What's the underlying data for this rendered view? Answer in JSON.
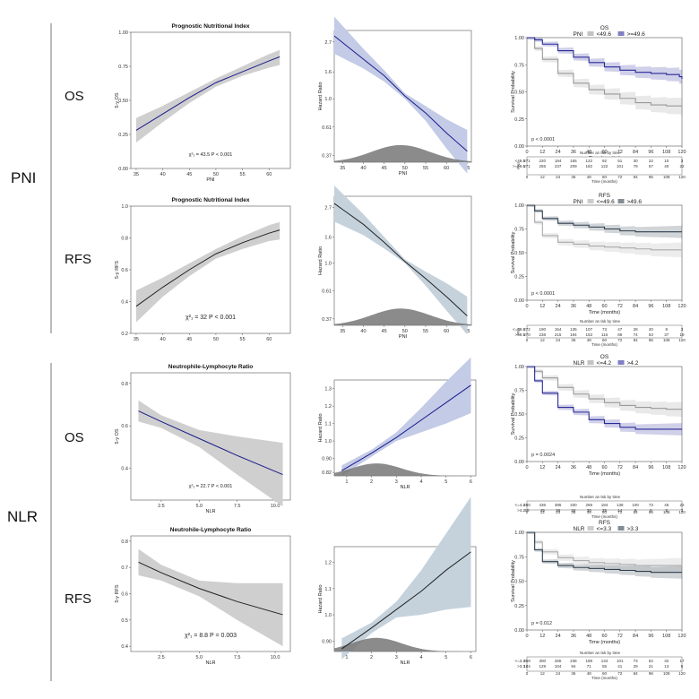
{
  "row_groups": [
    {
      "label": "PNI"
    },
    {
      "label": "NLR"
    }
  ],
  "row_labels": [
    "OS",
    "RFS",
    "OS",
    "RFS"
  ],
  "chart_data": [
    {
      "type": "line",
      "title": "Prognostic Nutritional Index",
      "xlabel": "PNI",
      "ylabel": "5-y OS",
      "xticks": [
        35,
        40,
        45,
        50,
        55,
        60
      ],
      "yticks": [
        "0.00",
        "0.25",
        "0.50",
        "0.75",
        "1.00"
      ],
      "xlim": [
        34,
        64
      ],
      "ylim": [
        0,
        1
      ],
      "x": [
        35,
        40,
        45,
        50,
        55,
        60,
        62
      ],
      "y": [
        0.28,
        0.4,
        0.52,
        0.63,
        0.71,
        0.79,
        0.82
      ],
      "ci_lower": [
        0.19,
        0.34,
        0.48,
        0.6,
        0.68,
        0.74,
        0.76
      ],
      "ci_upper": [
        0.37,
        0.46,
        0.56,
        0.66,
        0.75,
        0.84,
        0.87
      ],
      "line_color": "#1a1a8c",
      "annotation": "χ²₁ = 43.5  P < 0.001"
    },
    {
      "type": "line",
      "title": "",
      "xlabel": "PNI",
      "ylabel": "Hazard Ratio",
      "xticks": [
        35,
        40,
        45,
        50,
        55,
        60,
        65
      ],
      "yticks": [
        "0.37",
        "0.61",
        "1.0",
        "1.6",
        "2.7"
      ],
      "yscale": "log",
      "xlim": [
        33,
        66
      ],
      "ylim": [
        0.33,
        3.3
      ],
      "x": [
        33,
        40,
        45,
        50,
        55,
        60,
        65
      ],
      "y": [
        3.0,
        2.0,
        1.5,
        1.05,
        0.78,
        0.55,
        0.4
      ],
      "ci_lower": [
        2.2,
        1.7,
        1.35,
        1.0,
        0.68,
        0.42,
        0.27
      ],
      "ci_upper": [
        4.2,
        2.4,
        1.65,
        1.1,
        0.88,
        0.7,
        0.58
      ],
      "line_color": "#1a1a8c",
      "band_color": "#c3cbe6",
      "density": true
    },
    {
      "type": "line",
      "title": "OS",
      "legend": {
        "name": "PNI",
        "items": [
          "<49.6",
          ">=49.6"
        ]
      },
      "xlabel": "Time (months)",
      "ylabel": "Survival Probability",
      "xticks": [
        0,
        12,
        24,
        36,
        48,
        60,
        72,
        84,
        96,
        108,
        120
      ],
      "yticks": [
        "0.00",
        "0.25",
        "0.50",
        "0.75",
        "1.00"
      ],
      "xlim": [
        0,
        120
      ],
      "ylim": [
        0,
        1
      ],
      "series": [
        {
          "name": "<49.6",
          "color": "#999999",
          "x": [
            0,
            6,
            12,
            24,
            36,
            48,
            60,
            72,
            84,
            96,
            108,
            118,
            120
          ],
          "y": [
            1.0,
            0.9,
            0.8,
            0.67,
            0.58,
            0.52,
            0.48,
            0.44,
            0.4,
            0.38,
            0.37,
            0.37,
            0.27
          ]
        },
        {
          "name": ">=49.6",
          "color": "#2a2a99",
          "x": [
            0,
            6,
            12,
            24,
            36,
            48,
            60,
            72,
            84,
            96,
            108,
            118,
            120
          ],
          "y": [
            1.0,
            0.98,
            0.94,
            0.88,
            0.82,
            0.77,
            0.73,
            0.7,
            0.68,
            0.67,
            0.66,
            0.64,
            0.62
          ]
        }
      ],
      "pvalue": "p < 0.0001",
      "risk_title": "Number at risk by time",
      "risk_axis_label": "PNI",
      "risk_xlabel": "Time (months)",
      "risk_table": [
        {
          "name": "<49.6",
          "values": [
            "271",
            "220",
            "184",
            "155",
            "122",
            "92",
            "51",
            "30",
            "22",
            "10",
            "3"
          ]
        },
        {
          "name": ">=49.6",
          "values": [
            "271",
            "255",
            "237",
            "209",
            "182",
            "122",
            "101",
            "79",
            "57",
            "40",
            "22"
          ]
        }
      ]
    },
    {
      "type": "line",
      "title": "Prognostic Nutritional Index",
      "xlabel": "",
      "ylabel": "5-y RFS",
      "xticks": [
        35,
        40,
        45,
        50,
        55,
        60
      ],
      "yticks": [
        "0.2",
        "0.4",
        "0.6",
        "0.8",
        "1.0"
      ],
      "xlim": [
        34,
        64
      ],
      "ylim": [
        0.2,
        1
      ],
      "x": [
        35,
        40,
        45,
        50,
        55,
        60,
        62
      ],
      "y": [
        0.37,
        0.49,
        0.6,
        0.7,
        0.77,
        0.83,
        0.85
      ],
      "ci_lower": [
        0.27,
        0.43,
        0.56,
        0.67,
        0.73,
        0.78,
        0.79
      ],
      "ci_upper": [
        0.47,
        0.55,
        0.64,
        0.73,
        0.81,
        0.88,
        0.9
      ],
      "line_color": "#222222",
      "annotation": "χ²₁ = 32  P < 0.001"
    },
    {
      "type": "line",
      "title": "",
      "xlabel": "PNI",
      "ylabel": "Hazard Ratio",
      "xticks": [
        35,
        40,
        45,
        50,
        55,
        60,
        65
      ],
      "yticks": [
        "0.37",
        "0.61",
        "1.0",
        "1.6",
        "2.7"
      ],
      "yscale": "log",
      "xlim": [
        33,
        66
      ],
      "ylim": [
        0.33,
        3.3
      ],
      "x": [
        33,
        40,
        45,
        50,
        55,
        60,
        65
      ],
      "y": [
        2.9,
        2.0,
        1.45,
        1.03,
        0.76,
        0.55,
        0.39
      ],
      "ci_lower": [
        2.1,
        1.65,
        1.3,
        1.0,
        0.67,
        0.43,
        0.28
      ],
      "ci_upper": [
        4.0,
        2.4,
        1.6,
        1.07,
        0.86,
        0.7,
        0.55
      ],
      "line_color": "#222222",
      "band_color": "#c5d2dc",
      "density": true
    },
    {
      "type": "line",
      "title": "RFS",
      "legend": {
        "name": "PNI",
        "items": [
          "<=49.6",
          ">49.6"
        ]
      },
      "xlabel": "Time (months)",
      "ylabel": "Survival Probability",
      "xticks": [
        0,
        12,
        24,
        36,
        48,
        60,
        72,
        84,
        96,
        108,
        120
      ],
      "yticks": [
        "0.00",
        "0.25",
        "0.50",
        "0.75",
        "1.00"
      ],
      "xlim": [
        0,
        120
      ],
      "ylim": [
        0,
        1
      ],
      "series": [
        {
          "name": "<=49.6",
          "color": "#aaaaaa",
          "x": [
            0,
            6,
            12,
            24,
            36,
            48,
            60,
            72,
            84,
            96,
            108,
            120
          ],
          "y": [
            1.0,
            0.82,
            0.68,
            0.61,
            0.59,
            0.57,
            0.56,
            0.55,
            0.54,
            0.53,
            0.53,
            0.53
          ]
        },
        {
          "name": ">49.6",
          "color": "#2f3f4f",
          "x": [
            0,
            6,
            12,
            24,
            36,
            48,
            60,
            72,
            84,
            96,
            108,
            120
          ],
          "y": [
            1.0,
            0.94,
            0.86,
            0.81,
            0.79,
            0.77,
            0.75,
            0.73,
            0.72,
            0.72,
            0.72,
            0.72
          ]
        }
      ],
      "pvalue": "p < 0.0001",
      "risk_title": "Number at risk by time",
      "risk_axis_label": "PNI",
      "risk_xlabel": "Time (months)",
      "risk_table": [
        {
          "name": "<=49.6",
          "values": [
            "272",
            "190",
            "154",
            "135",
            "107",
            "73",
            "47",
            "28",
            "20",
            "8",
            "3"
          ]
        },
        {
          "name": ">49.6",
          "values": [
            "270",
            "238",
            "215",
            "194",
            "153",
            "116",
            "86",
            "74",
            "53",
            "37",
            "19"
          ]
        }
      ]
    },
    {
      "type": "line",
      "title": "Neutrophile-Lymphocyte Ratio",
      "xlabel": "NLR",
      "ylabel": "5-y OS",
      "xticks": [
        "2.5",
        "5.0",
        "7.5",
        "10.0"
      ],
      "yticks": [
        "0.4",
        "0.6",
        "0.8"
      ],
      "xlim": [
        0.5,
        11
      ],
      "ylim": [
        0.25,
        0.85
      ],
      "x": [
        1,
        2.5,
        5,
        7.5,
        10.5
      ],
      "y": [
        0.67,
        0.62,
        0.54,
        0.46,
        0.37
      ],
      "ci_lower": [
        0.62,
        0.59,
        0.5,
        0.37,
        0.22
      ],
      "ci_upper": [
        0.72,
        0.65,
        0.58,
        0.55,
        0.52
      ],
      "line_color": "#1a1a8c",
      "annotation": "χ²₁ = 22.7  P < 0.001"
    },
    {
      "type": "line",
      "title": "",
      "xlabel": "NLR",
      "ylabel": "Hazard Ratio",
      "xticks": [
        1,
        2,
        3,
        4,
        5,
        6
      ],
      "yticks": [
        "0.82",
        "0.90",
        "1.0",
        "1.1",
        "1.2",
        "1.3"
      ],
      "xlim": [
        0.5,
        6.2
      ],
      "ylim": [
        0.8,
        1.35
      ],
      "x": [
        0.8,
        2,
        3,
        4,
        5,
        6
      ],
      "y": [
        0.83,
        0.93,
        1.02,
        1.12,
        1.22,
        1.32
      ],
      "ci_lower": [
        0.8,
        0.91,
        1.0,
        1.05,
        1.1,
        1.16
      ],
      "ci_upper": [
        0.86,
        0.95,
        1.05,
        1.19,
        1.34,
        1.48
      ],
      "line_color": "#1a1a8c",
      "band_color": "#c3cbe6",
      "density": true
    },
    {
      "type": "line",
      "title": "OS",
      "legend": {
        "name": "NLR",
        "items": [
          "<=4.2",
          ">4.2"
        ]
      },
      "xlabel": "Time (months)",
      "ylabel": "Survival Probability",
      "xticks": [
        0,
        12,
        24,
        36,
        48,
        60,
        72,
        84,
        96,
        108,
        120
      ],
      "yticks": [
        "0.00",
        "0.25",
        "0.50",
        "0.75",
        "1.00"
      ],
      "xlim": [
        0,
        120
      ],
      "ylim": [
        0,
        1
      ],
      "series": [
        {
          "name": "<=4.2",
          "color": "#999999",
          "x": [
            0,
            6,
            12,
            24,
            36,
            48,
            60,
            72,
            84,
            96,
            108,
            120
          ],
          "y": [
            1.0,
            0.95,
            0.88,
            0.78,
            0.71,
            0.66,
            0.62,
            0.59,
            0.57,
            0.56,
            0.55,
            0.54
          ]
        },
        {
          "name": ">4.2",
          "color": "#2a2a99",
          "x": [
            0,
            6,
            12,
            24,
            36,
            48,
            60,
            72,
            84,
            96,
            108,
            120
          ],
          "y": [
            1.0,
            0.85,
            0.72,
            0.57,
            0.52,
            0.44,
            0.4,
            0.36,
            0.34,
            0.34,
            0.34,
            0.34
          ]
        }
      ],
      "pvalue": "p = 0.0024",
      "risk_title": "Number at risk by time",
      "risk_xlabel": "Time (months)",
      "risk_table": [
        {
          "name": "<=4.2",
          "values": [
            "480",
            "436",
            "385",
            "330",
            "269",
            "184",
            "138",
            "100",
            "73",
            "45",
            "22"
          ]
        },
        {
          "name": ">4.2",
          "values": [
            "58",
            "45",
            "36",
            "34",
            "30",
            "25",
            "14",
            "9",
            "6",
            "5",
            "3"
          ]
        }
      ]
    },
    {
      "type": "line",
      "title": "Neutrohile-Lymphocyte Ratio",
      "xlabel": "NLR",
      "ylabel": "5-y RFS",
      "xticks": [
        "2.5",
        "5.0",
        "7.5",
        "10.0"
      ],
      "yticks": [
        "0.4",
        "0.5",
        "0.6",
        "0.7",
        "0.8"
      ],
      "xlim": [
        0.5,
        11
      ],
      "ylim": [
        0.38,
        0.82
      ],
      "x": [
        1,
        2.5,
        5,
        7.5,
        10.5
      ],
      "y": [
        0.72,
        0.68,
        0.62,
        0.57,
        0.52
      ],
      "ci_lower": [
        0.67,
        0.65,
        0.59,
        0.5,
        0.4
      ],
      "ci_upper": [
        0.77,
        0.71,
        0.65,
        0.64,
        0.64
      ],
      "line_color": "#222222",
      "annotation": "χ²₁ = 8.8  P = 0.003"
    },
    {
      "type": "line",
      "title": "",
      "xlabel": "NLR",
      "ylabel": "Hazard Ratio",
      "xticks": [
        1,
        2,
        3,
        4,
        5,
        6
      ],
      "yticks": [
        "0.90",
        "1.0",
        "1.1",
        "1.2"
      ],
      "xlim": [
        0.5,
        6.2
      ],
      "ylim": [
        0.86,
        1.26
      ],
      "x": [
        0.8,
        2,
        3,
        4,
        5,
        6
      ],
      "y": [
        0.87,
        0.95,
        1.02,
        1.09,
        1.17,
        1.24
      ],
      "ci_lower": [
        0.83,
        0.93,
        0.99,
        1.0,
        1.02,
        1.03
      ],
      "ci_upper": [
        0.91,
        0.97,
        1.05,
        1.17,
        1.31,
        1.45
      ],
      "line_color": "#222222",
      "band_color": "#c5d2dc",
      "density": true
    },
    {
      "type": "line",
      "title": "RFS",
      "legend": {
        "name": "NLR",
        "items": [
          "<=3.3",
          ">3.3"
        ]
      },
      "xlabel": "Time (months)",
      "ylabel": "Survival Probability",
      "xticks": [
        0,
        12,
        24,
        36,
        48,
        60,
        72,
        84,
        96,
        108,
        120
      ],
      "yticks": [
        "0.00",
        "0.25",
        "0.50",
        "0.75",
        "1.00"
      ],
      "xlim": [
        0,
        120
      ],
      "ylim": [
        0,
        1
      ],
      "series": [
        {
          "name": "<=3.3",
          "color": "#aaaaaa",
          "x": [
            0,
            6,
            12,
            24,
            36,
            48,
            60,
            72,
            84,
            96,
            108,
            120
          ],
          "y": [
            1.0,
            0.9,
            0.8,
            0.74,
            0.71,
            0.69,
            0.68,
            0.67,
            0.66,
            0.66,
            0.66,
            0.66
          ]
        },
        {
          "name": ">3.3",
          "color": "#2f3f4f",
          "x": [
            0,
            6,
            12,
            24,
            36,
            48,
            60,
            72,
            84,
            96,
            108,
            120
          ],
          "y": [
            1.0,
            0.82,
            0.7,
            0.66,
            0.64,
            0.63,
            0.62,
            0.61,
            0.6,
            0.59,
            0.59,
            0.59
          ]
        }
      ],
      "pvalue": "p = 0.012",
      "risk_title": "Number at risk by time",
      "risk_xlabel": "Time (months)",
      "risk_table": [
        {
          "name": "<=3.3",
          "values": [
            "358",
            "300",
            "265",
            "236",
            "189",
            "134",
            "101",
            "73",
            "52",
            "32",
            "17"
          ]
        },
        {
          "name": ">3.3",
          "values": [
            "184",
            "129",
            "104",
            "94",
            "71",
            "55",
            "41",
            "29",
            "21",
            "13",
            "5"
          ]
        }
      ]
    }
  ]
}
